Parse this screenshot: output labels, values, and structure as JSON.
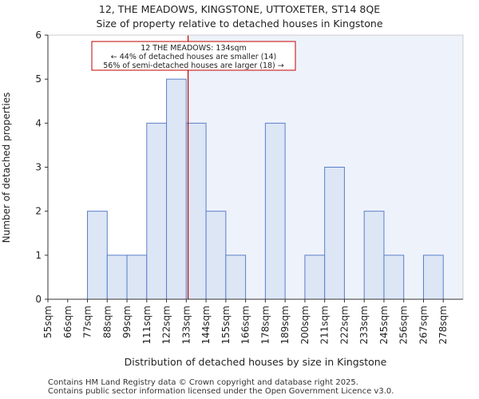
{
  "chart_data": {
    "type": "bar",
    "title": "12, THE MEADOWS, KINGSTONE, UTTOXETER, ST14 8QE",
    "subtitle": "Size of property relative to detached houses in Kingstone",
    "xlabel": "Distribution of detached houses by size in Kingstone",
    "ylabel": "Number of detached properties",
    "categories": [
      "55sqm",
      "66sqm",
      "77sqm",
      "88sqm",
      "99sqm",
      "111sqm",
      "122sqm",
      "133sqm",
      "144sqm",
      "155sqm",
      "166sqm",
      "178sqm",
      "189sqm",
      "200sqm",
      "211sqm",
      "222sqm",
      "233sqm",
      "245sqm",
      "256sqm",
      "267sqm",
      "278sqm"
    ],
    "values": [
      0,
      0,
      2,
      1,
      1,
      4,
      5,
      4,
      2,
      1,
      0,
      4,
      0,
      1,
      3,
      0,
      2,
      1,
      0,
      1,
      0
    ],
    "ylim": [
      0,
      6
    ],
    "yticks": [
      0,
      1,
      2,
      3,
      4,
      5,
      6
    ],
    "marker": {
      "value_sqm": 134,
      "label_line1": "12 THE MEADOWS: 134sqm",
      "label_line2": "← 44% of detached houses are smaller (14)",
      "label_line3": "56% of semi-detached houses are larger (18) →",
      "color": "#c00000"
    },
    "colors": {
      "bar_fill": "#dce6f5",
      "bar_stroke": "#5b7fc8",
      "shade": "#eef2fb"
    }
  },
  "footer": {
    "line1": "Contains HM Land Registry data © Crown copyright and database right 2025.",
    "line2": "Contains public sector information licensed under the Open Government Licence v3.0."
  }
}
